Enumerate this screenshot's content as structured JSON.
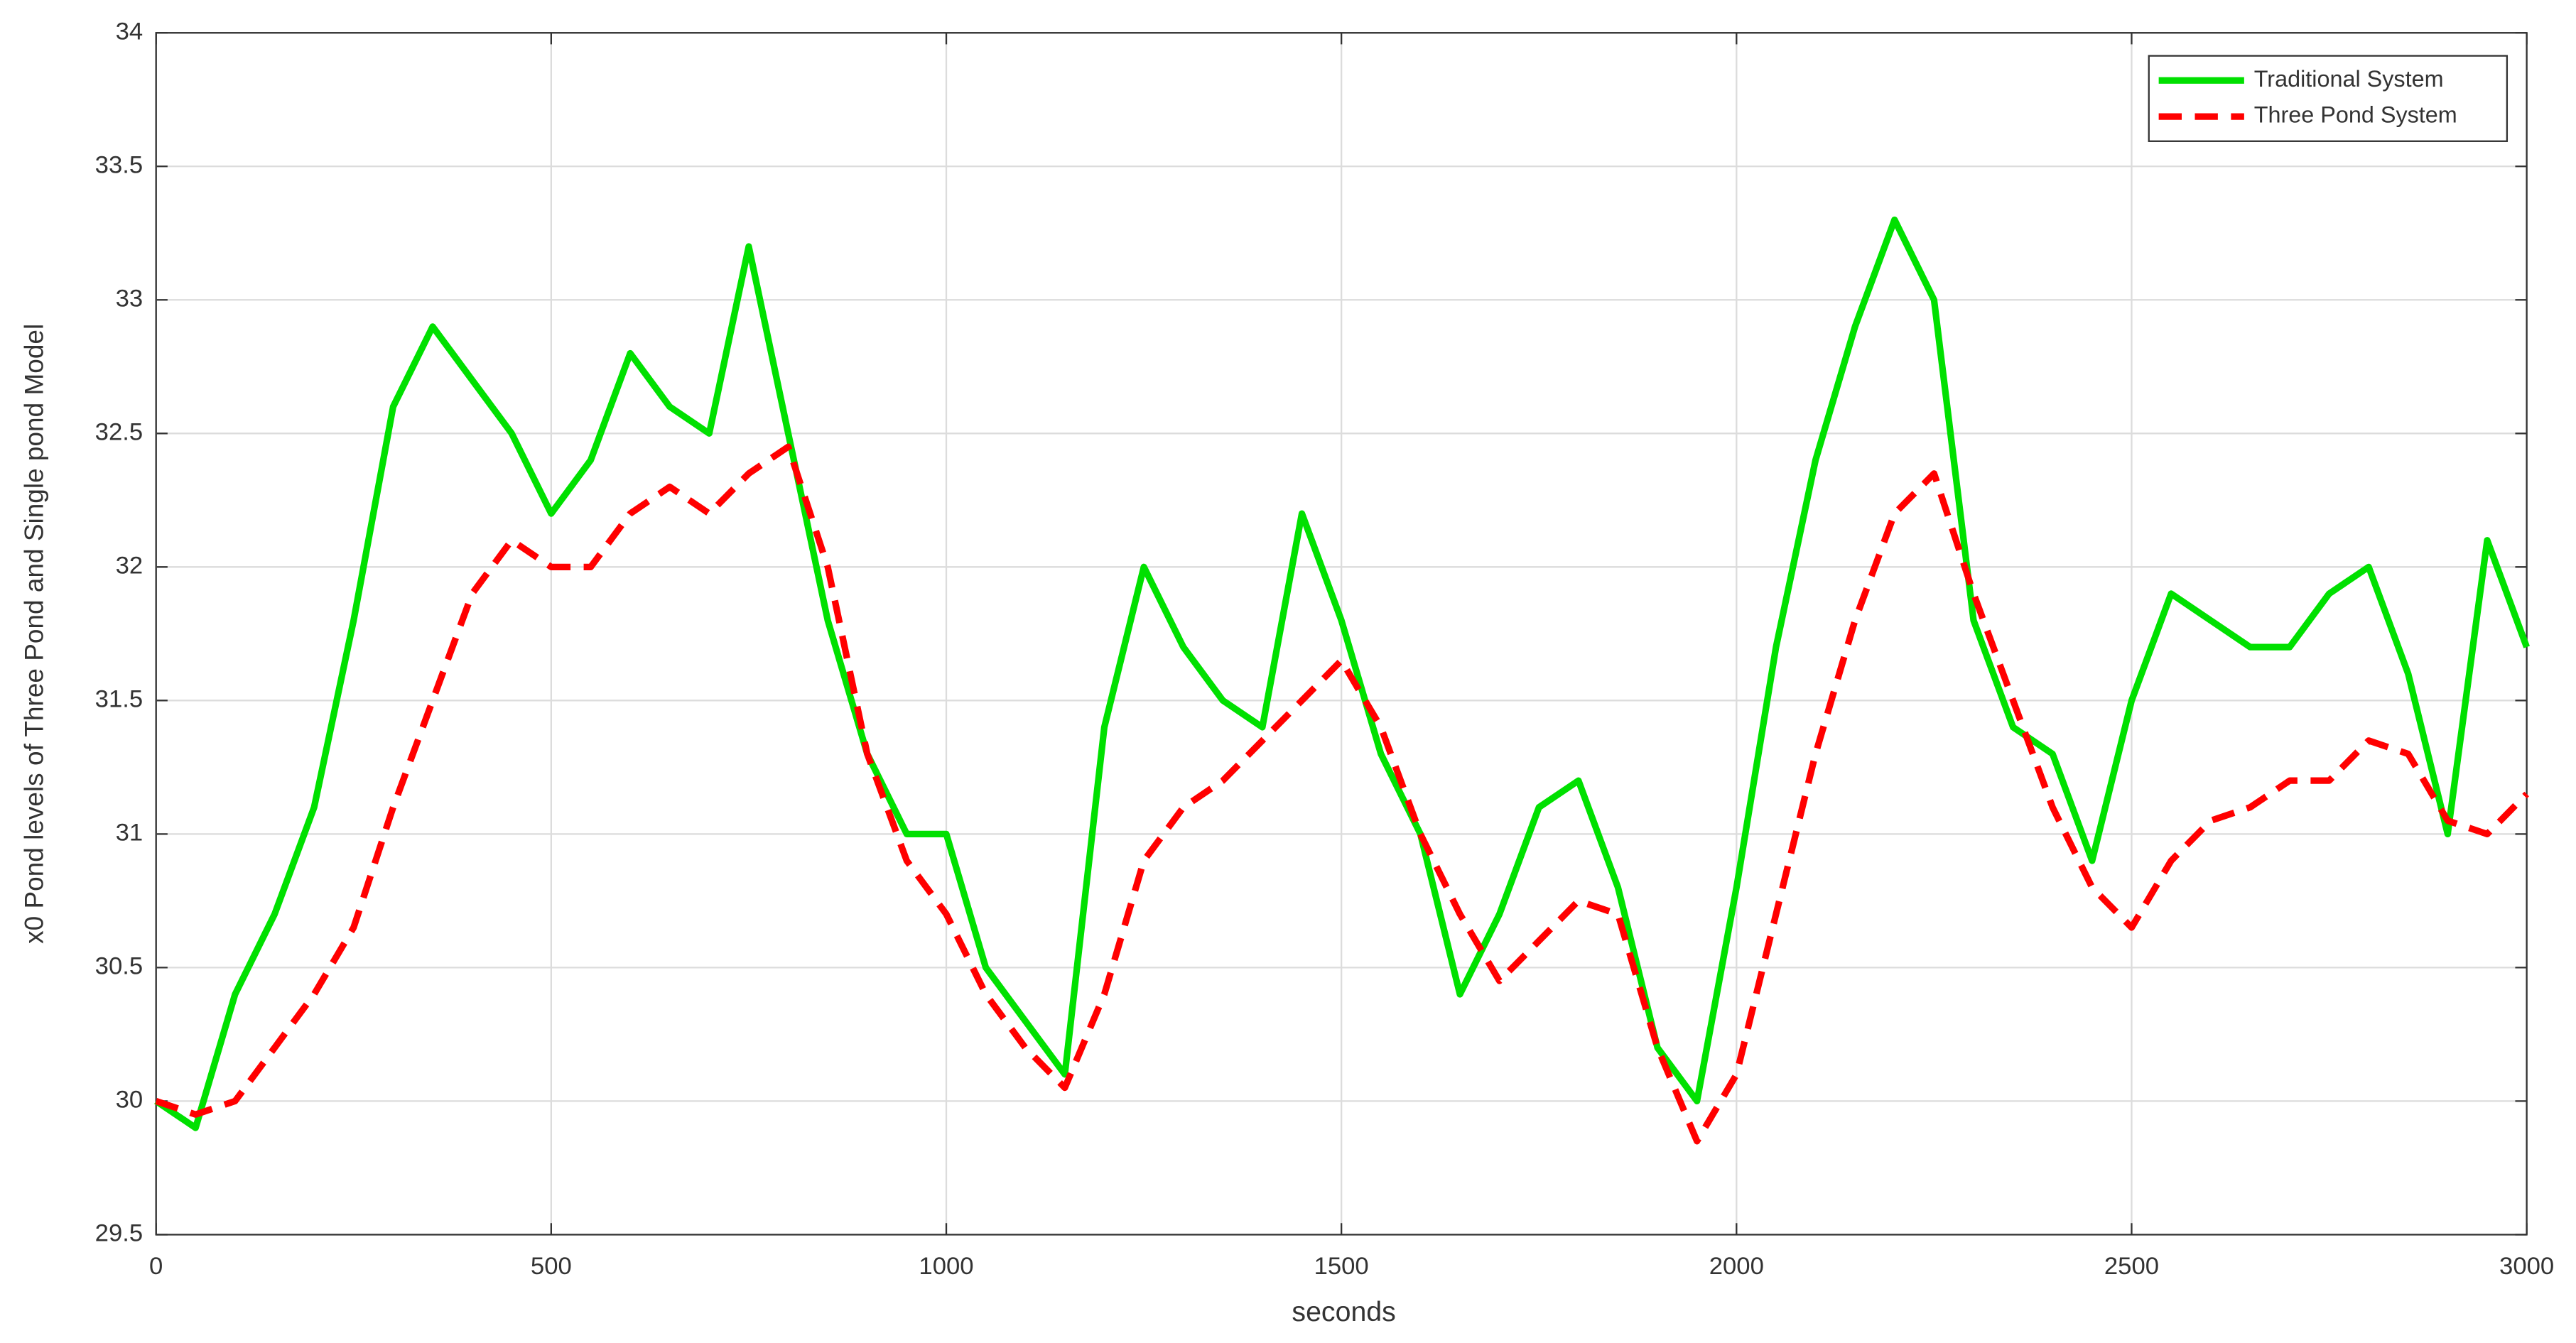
{
  "chart_data": {
    "type": "line",
    "xlabel": "seconds",
    "ylabel": "x0 Pond levels of Three Pond and Single pond Model",
    "x": [
      0,
      50,
      100,
      150,
      200,
      250,
      300,
      350,
      400,
      450,
      500,
      550,
      600,
      650,
      700,
      750,
      800,
      850,
      900,
      950,
      1000,
      1050,
      1100,
      1150,
      1200,
      1250,
      1300,
      1350,
      1400,
      1450,
      1500,
      1550,
      1600,
      1650,
      1700,
      1750,
      1800,
      1850,
      1900,
      1950,
      2000,
      2050,
      2100,
      2150,
      2200,
      2250,
      2300,
      2350,
      2400,
      2450,
      2500,
      2550,
      2600,
      2650,
      2700,
      2750,
      2800,
      2850,
      2900,
      2950,
      3000
    ],
    "series": [
      {
        "name": "Traditional System",
        "color": "#00e000",
        "style": "solid",
        "values": [
          30.0,
          29.9,
          30.4,
          30.7,
          31.1,
          31.8,
          32.6,
          32.9,
          32.7,
          32.5,
          32.2,
          32.4,
          32.8,
          32.6,
          32.5,
          33.2,
          32.5,
          31.8,
          31.3,
          31.0,
          31.0,
          30.5,
          30.3,
          30.1,
          31.4,
          32.0,
          31.7,
          31.5,
          31.4,
          32.2,
          31.8,
          31.3,
          31.0,
          30.4,
          30.7,
          31.1,
          31.2,
          30.8,
          30.2,
          30.0,
          30.8,
          31.7,
          32.4,
          32.9,
          33.3,
          33.0,
          31.8,
          31.4,
          31.3,
          30.9,
          31.5,
          31.9,
          31.8,
          31.7,
          31.7,
          31.9,
          32.0,
          31.6,
          31.0,
          32.1,
          31.7
        ]
      },
      {
        "name": "Three Pond System",
        "color": "#ff0000",
        "style": "dashed",
        "values": [
          30.0,
          29.95,
          30.0,
          30.2,
          30.4,
          30.65,
          31.1,
          31.5,
          31.9,
          32.1,
          32.0,
          32.0,
          32.2,
          32.3,
          32.2,
          32.35,
          32.45,
          32.0,
          31.3,
          30.9,
          30.7,
          30.4,
          30.2,
          30.05,
          30.4,
          30.9,
          31.1,
          31.2,
          31.35,
          31.5,
          31.65,
          31.4,
          31.0,
          30.7,
          30.45,
          30.6,
          30.75,
          30.7,
          30.2,
          29.85,
          30.1,
          30.7,
          31.3,
          31.8,
          32.2,
          32.35,
          31.9,
          31.5,
          31.1,
          30.8,
          30.65,
          30.9,
          31.05,
          31.1,
          31.2,
          31.2,
          31.35,
          31.3,
          31.05,
          31.0,
          31.15
        ]
      }
    ],
    "xlim": [
      0,
      3000
    ],
    "xticks": [
      0,
      500,
      1000,
      1500,
      2000,
      2500,
      3000
    ],
    "ylim": [
      29.5,
      34
    ],
    "yticks": [
      29.5,
      30,
      30.5,
      31,
      31.5,
      32,
      32.5,
      33,
      33.5,
      34
    ],
    "grid": true,
    "legend": "northeast"
  }
}
